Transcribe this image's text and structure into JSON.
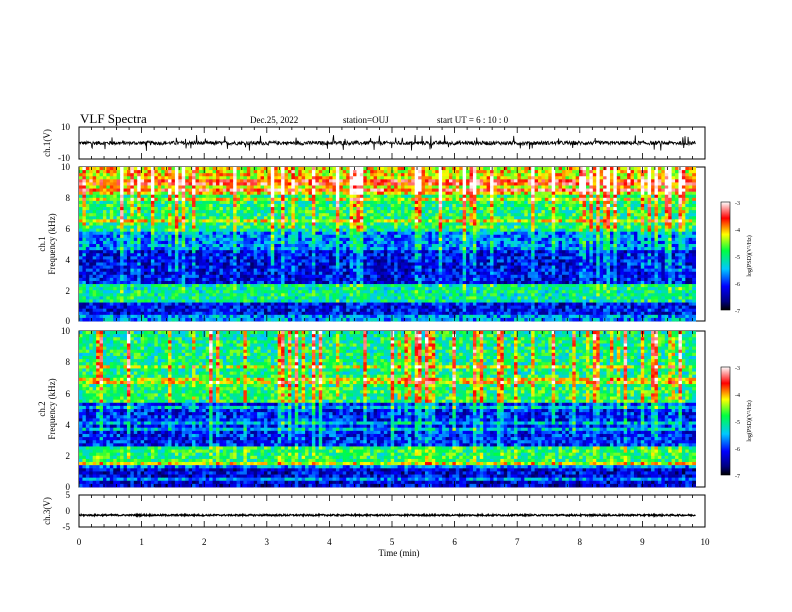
{
  "header": {
    "title": "VLF Spectra",
    "date": "Dec.25, 2022",
    "station": "station=OUJ",
    "start": "start  UT =   6 : 10 : 0"
  },
  "chart_data": [
    {
      "type": "line",
      "panel": "ch1-waveform",
      "ylabel": "ch.1(V)",
      "ylim": [
        -10,
        10
      ],
      "yticks": [
        "10",
        "-10"
      ],
      "xlim": [
        0,
        10
      ],
      "series": [
        {
          "baseline": 0,
          "spread": 1.2,
          "spike_peak": 5
        }
      ]
    },
    {
      "type": "heatmap",
      "panel": "ch1-spectrogram",
      "ylabel": "ch.1\nFrequency (kHz)",
      "ylim": [
        0,
        10
      ],
      "yticks": [
        "0",
        "2",
        "4",
        "6",
        "8",
        "10"
      ],
      "xlim": [
        0,
        9.85
      ],
      "colorbar": {
        "label": "log(PSD)(V²/Hz)",
        "range": [
          -7,
          -3
        ],
        "ticks": [
          "-3",
          "-4",
          "-5",
          "-6",
          "-7"
        ]
      },
      "bands_khz": [
        {
          "from": 0,
          "to": 1.2,
          "level": -6.2
        },
        {
          "from": 1.2,
          "to": 2.4,
          "level": -5.1
        },
        {
          "from": 2.4,
          "to": 4.6,
          "level": -6.2
        },
        {
          "from": 4.6,
          "to": 6.0,
          "level": -5.7
        },
        {
          "from": 6.0,
          "to": 8.2,
          "level": -4.9
        },
        {
          "from": 8.2,
          "to": 10,
          "level": -4.2
        }
      ]
    },
    {
      "type": "heatmap",
      "panel": "ch2-spectrogram",
      "ylabel": "ch.2\nFrequency (kHz)",
      "ylim": [
        0,
        10
      ],
      "yticks": [
        "0",
        "2",
        "4",
        "6",
        "8",
        "10"
      ],
      "xlim": [
        0,
        9.85
      ],
      "colorbar": {
        "label": "log(PSD)(V²/Hz)",
        "range": [
          -7,
          -3
        ],
        "ticks": [
          "-3",
          "-4",
          "-5",
          "-6",
          "-7"
        ]
      },
      "bands_khz": [
        {
          "from": 0,
          "to": 1.4,
          "level": -6.3
        },
        {
          "from": 1.4,
          "to": 2.6,
          "level": -4.9
        },
        {
          "from": 2.6,
          "to": 5.5,
          "level": -6.1
        },
        {
          "from": 5.5,
          "to": 7.2,
          "level": -4.9
        },
        {
          "from": 7.2,
          "to": 10,
          "level": -5.0
        }
      ]
    },
    {
      "type": "line",
      "panel": "ch3-waveform",
      "ylabel": "ch.3(V)",
      "ylim": [
        -5,
        5
      ],
      "yticks": [
        "5",
        "0",
        "-5"
      ],
      "xlim": [
        0,
        10
      ],
      "series": [
        {
          "baseline": -1.3,
          "spread": 0.25
        }
      ]
    }
  ],
  "xaxis": {
    "label": "Time (min)",
    "ticks": [
      "0",
      "1",
      "2",
      "3",
      "4",
      "5",
      "6",
      "7",
      "8",
      "9",
      "10"
    ],
    "range": [
      0,
      10
    ]
  }
}
